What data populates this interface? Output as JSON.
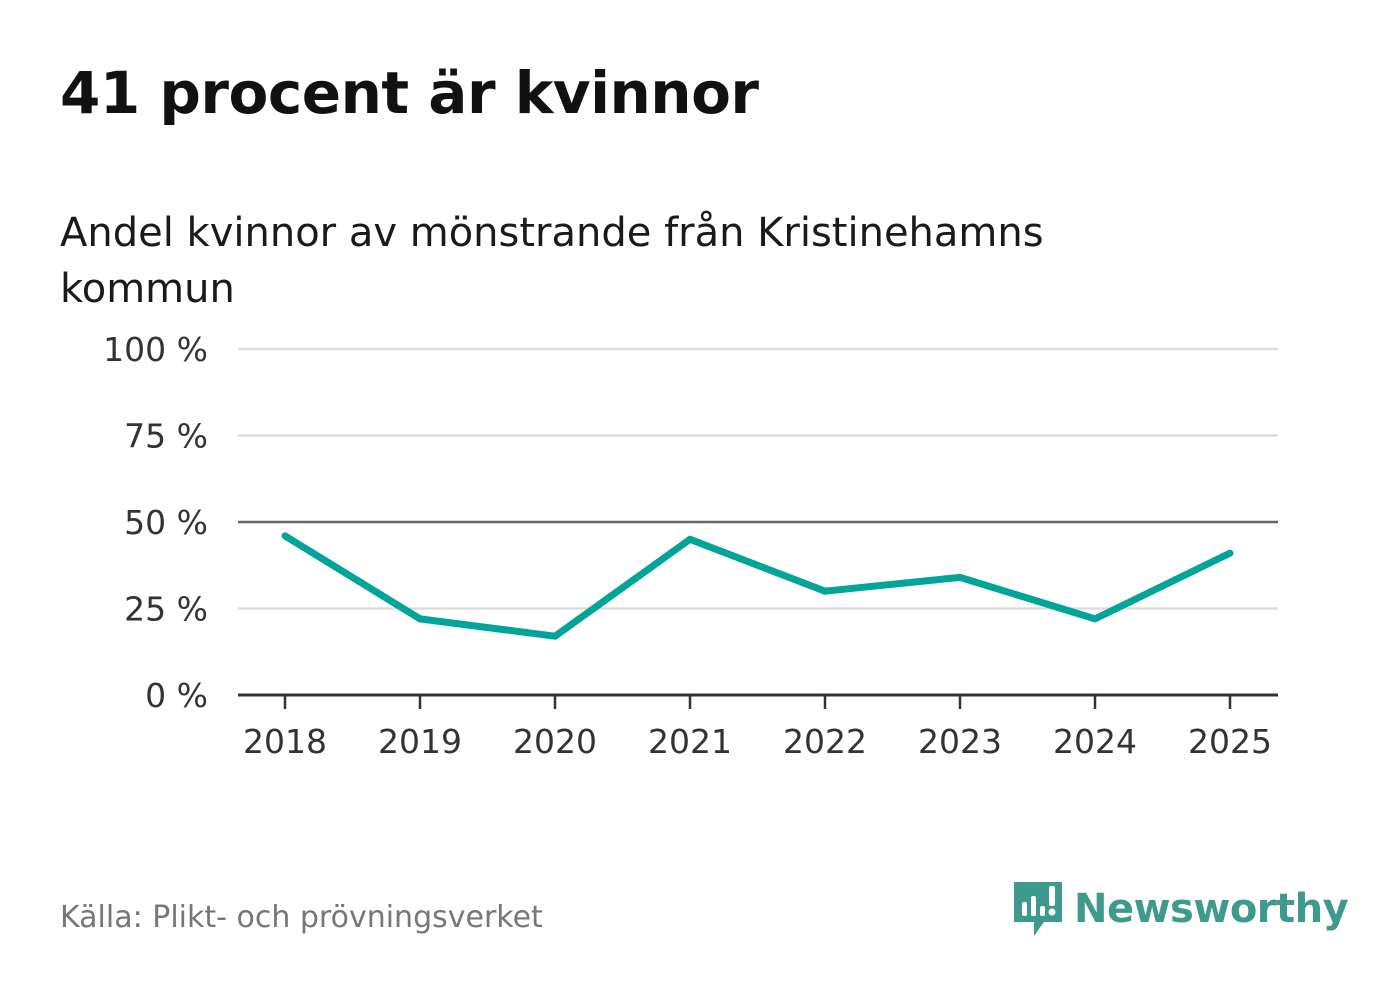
{
  "title": "41 procent är kvinnor",
  "subtitle": "Andel kvinnor av mönstrande från Kristinehamns kommun",
  "source": "Källa: Plikt- och prövningsverket",
  "logo": {
    "text": "Newsworthy",
    "icon": "newsworthy-logo-icon"
  },
  "colors": {
    "line": "#00a499",
    "grid": "#dddddd",
    "reference": "#666666",
    "axis": "#333333",
    "logo": "#3f9a8e"
  },
  "chart_data": {
    "type": "line",
    "title": "41 procent är kvinnor",
    "subtitle": "Andel kvinnor av mönstrande från Kristinehamns kommun",
    "xlabel": "",
    "ylabel": "",
    "categories": [
      "2018",
      "2019",
      "2020",
      "2021",
      "2022",
      "2023",
      "2024",
      "2025"
    ],
    "series": [
      {
        "name": "Andel kvinnor",
        "values": [
          46,
          22,
          17,
          45,
          30,
          34,
          22,
          41
        ]
      }
    ],
    "ylim": [
      0,
      100
    ],
    "yticks": [
      0,
      25,
      50,
      75,
      100
    ],
    "ytick_labels": [
      "0 %",
      "25 %",
      "50 %",
      "75 %",
      "100 %"
    ],
    "reference_line": 50,
    "grid": true,
    "legend": "none"
  }
}
